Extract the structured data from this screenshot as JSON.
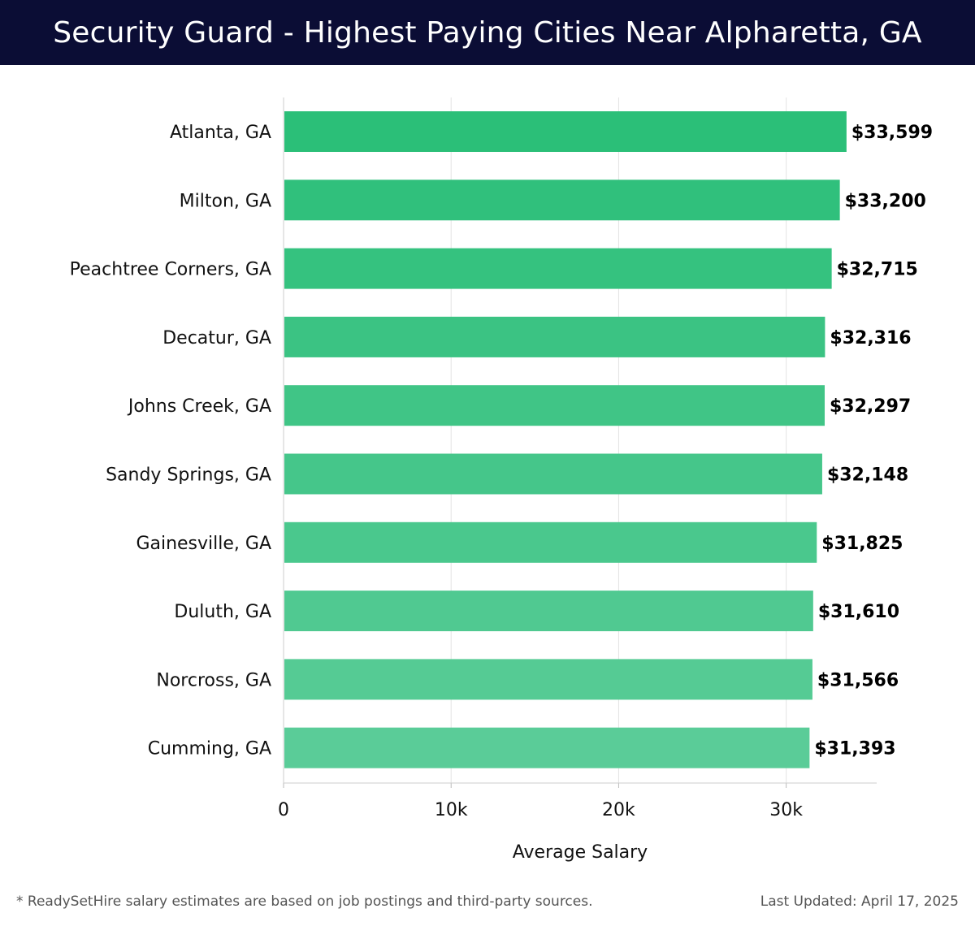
{
  "header": {
    "title": "Security Guard - Highest Paying Cities Near Alpharetta, GA"
  },
  "chart_data": {
    "type": "bar",
    "orientation": "horizontal",
    "title": "Security Guard - Highest Paying Cities Near Alpharetta, GA",
    "categories": [
      "Atlanta, GA",
      "Milton, GA",
      "Peachtree Corners, GA",
      "Decatur, GA",
      "Johns Creek, GA",
      "Sandy Springs, GA",
      "Gainesville, GA",
      "Duluth, GA",
      "Norcross, GA",
      "Cumming, GA"
    ],
    "values": [
      33599,
      33200,
      32715,
      32316,
      32297,
      32148,
      31825,
      31610,
      31566,
      31393
    ],
    "value_labels": [
      "$33,599",
      "$33,200",
      "$32,715",
      "$32,316",
      "$32,297",
      "$32,148",
      "$31,825",
      "$31,610",
      "$31,566",
      "$31,393"
    ],
    "xlabel": "Average Salary",
    "ylabel": "",
    "xlim": [
      0,
      35400
    ],
    "xticks": [
      0,
      10000,
      20000,
      30000
    ],
    "xtick_labels": [
      "0",
      "10k",
      "20k",
      "30k"
    ],
    "grid": "vertical",
    "bar_color_top": "#2bbf78",
    "bar_color_bottom": "#5acc98"
  },
  "footer": {
    "note": "* ReadySetHire salary estimates are based on job postings and third-party sources.",
    "updated": "Last Updated: April 17, 2025"
  }
}
